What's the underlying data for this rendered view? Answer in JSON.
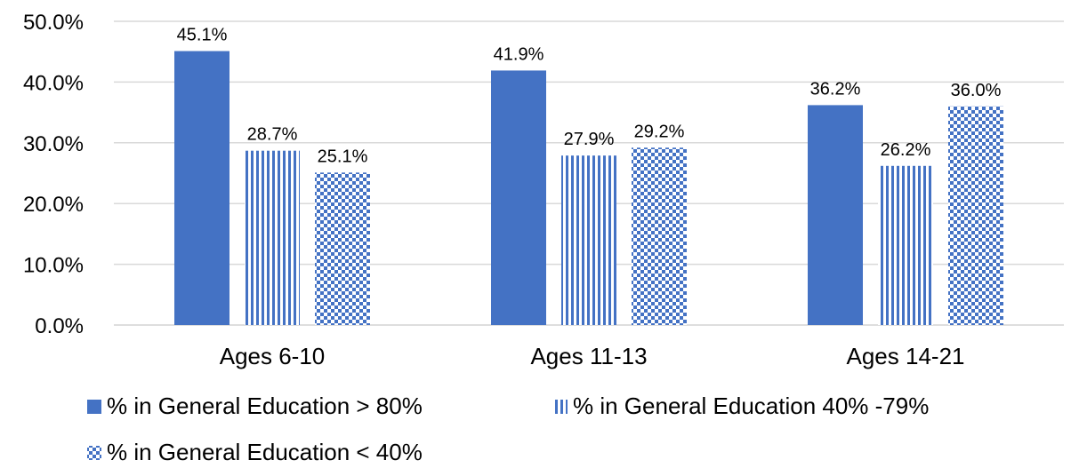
{
  "chart_data": {
    "type": "bar",
    "title": "",
    "xlabel": "",
    "ylabel": "",
    "categories": [
      "Ages 6-10",
      "Ages 11-13",
      "Ages 14-21"
    ],
    "ylim": [
      0,
      50
    ],
    "y_ticks": [
      "0.0%",
      "10.0%",
      "20.0%",
      "30.0%",
      "40.0%",
      "50.0%"
    ],
    "grid": true,
    "legend_position": "bottom",
    "series": [
      {
        "name": "% in General Education > 80%",
        "values": [
          45.1,
          41.9,
          36.2
        ],
        "labels": [
          "45.1%",
          "41.9%",
          "36.2%"
        ],
        "pattern": "solid",
        "color": "#4472C4"
      },
      {
        "name": "% in General Education 40% -79%",
        "values": [
          28.7,
          27.9,
          26.2
        ],
        "labels": [
          "28.7%",
          "27.9%",
          "26.2%"
        ],
        "pattern": "vertical-stripes",
        "color": "#4472C4"
      },
      {
        "name": "% in General Education < 40%",
        "values": [
          25.1,
          29.2,
          36.0
        ],
        "labels": [
          "25.1%",
          "29.2%",
          "36.0%"
        ],
        "pattern": "checkerboard",
        "color": "#4472C4"
      }
    ]
  }
}
